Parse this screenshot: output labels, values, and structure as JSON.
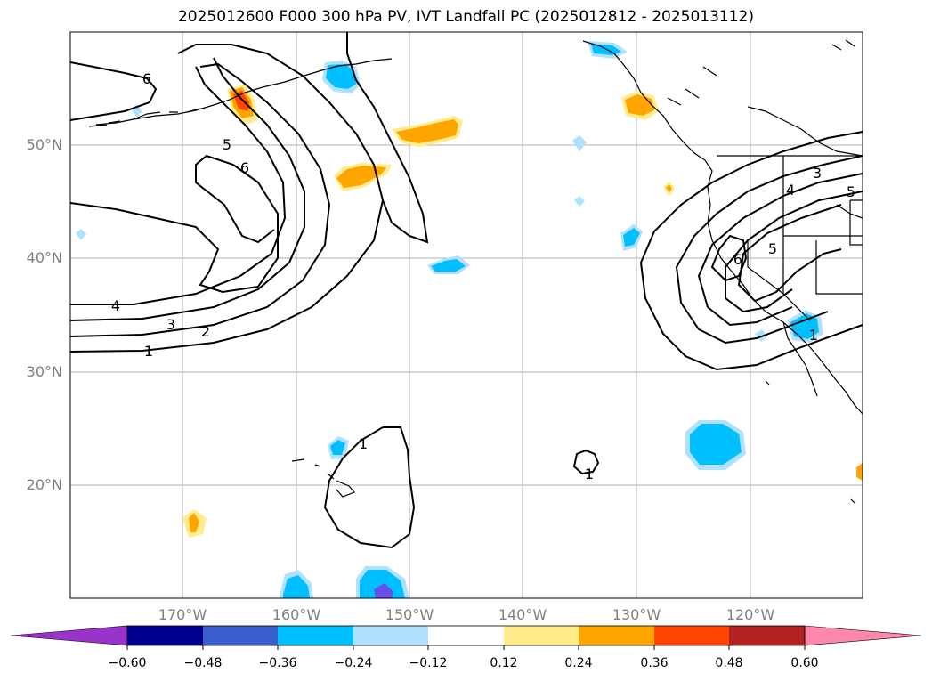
{
  "title": "2025012600 F000 300 hPa PV, IVT Landfall PC (2025012812 - 2025013112)",
  "axes": {
    "lat_labels": [
      "50°N",
      "40°N",
      "30°N",
      "20°N"
    ],
    "lon_labels": [
      "170°W",
      "160°W",
      "150°W",
      "140°W",
      "130°W",
      "120°W"
    ]
  },
  "contour_labels": [
    "6",
    "5",
    "6",
    "4",
    "3",
    "2",
    "1",
    "1",
    "1",
    "6",
    "5",
    "4",
    "3",
    "5",
    "1"
  ],
  "colorbar": {
    "ticks": [
      "−0.60",
      "−0.48",
      "−0.36",
      "−0.24",
      "−0.12",
      "0.12",
      "0.24",
      "0.36",
      "0.48",
      "0.60"
    ],
    "colors": [
      "#9933cc",
      "#000090",
      "#3a5fcd",
      "#00bfff",
      "#b0e2ff",
      "#ffffff",
      "#ffec8b",
      "#ffa500",
      "#ff4500",
      "#b22222",
      "#ff88aa"
    ]
  }
}
